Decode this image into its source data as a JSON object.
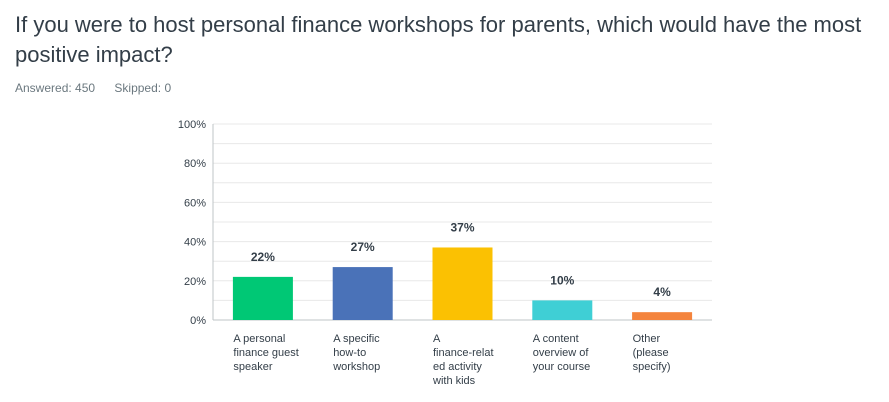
{
  "question": {
    "title": "If you were to host personal finance workshops for parents, which would have the most positive impact?"
  },
  "stats": {
    "answered": "Answered: 450",
    "skipped": "Skipped: 0"
  },
  "colors": {
    "text": "#333e48",
    "muted": "#6b787f",
    "grid": "#e8e8e8",
    "axis": "#bfc4c7"
  },
  "chart_data": {
    "type": "bar",
    "categories": [
      [
        "A personal",
        "finance guest",
        "speaker"
      ],
      [
        "A specific",
        "how-to",
        "workshop"
      ],
      [
        "A",
        "finance-relat",
        "ed activity",
        "with kids"
      ],
      [
        "A content",
        "overview of",
        "your course"
      ],
      [
        "Other",
        "(please",
        "specify)"
      ]
    ],
    "values": [
      22,
      27,
      37,
      10,
      4
    ],
    "value_labels": [
      "22%",
      "27%",
      "37%",
      "10%",
      "4%"
    ],
    "bar_colors": [
      "#00c875",
      "#4a72b8",
      "#fbc102",
      "#3fcfd5",
      "#f4843d"
    ],
    "y_ticks": [
      "0%",
      "20%",
      "40%",
      "60%",
      "80%",
      "100%"
    ],
    "ylim": [
      0,
      100
    ],
    "grid": true,
    "xlabel": "",
    "ylabel": ""
  }
}
